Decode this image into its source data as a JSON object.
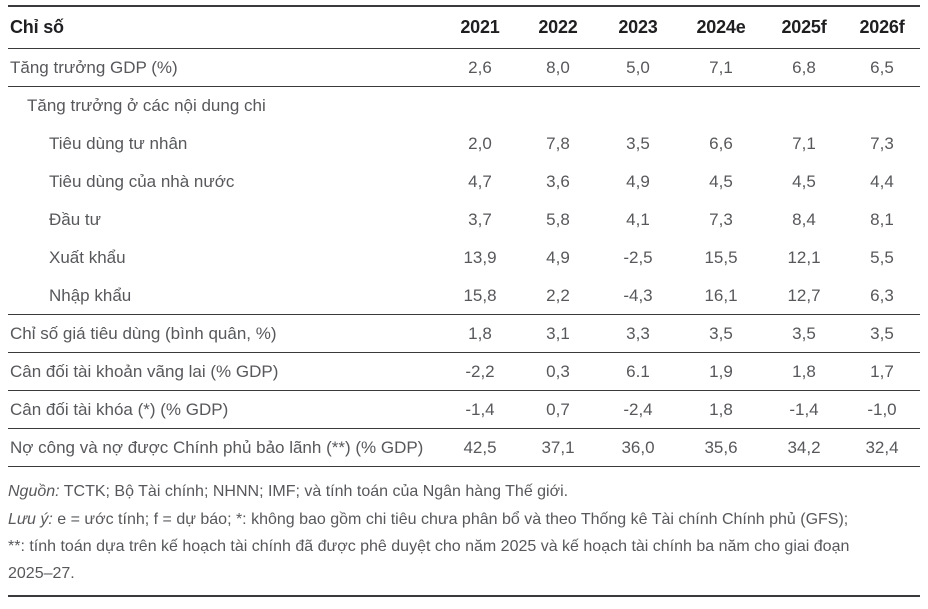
{
  "table": {
    "header": {
      "label": "Chỉ số",
      "years": [
        "2021",
        "2022",
        "2023",
        "2024e",
        "2025f",
        "2026f"
      ]
    },
    "rows": [
      {
        "label": "Tăng trưởng GDP (%)",
        "indent": 0,
        "values": [
          "2,6",
          "8,0",
          "5,0",
          "7,1",
          "6,8",
          "6,5"
        ],
        "rule_below": true
      },
      {
        "label": "Tăng trưởng ở các nội dung chi",
        "indent": 1,
        "values": [
          "",
          "",
          "",
          "",
          "",
          ""
        ],
        "rule_below": false
      },
      {
        "label": "Tiêu dùng tư nhân",
        "indent": 2,
        "values": [
          "2,0",
          "7,8",
          "3,5",
          "6,6",
          "7,1",
          "7,3"
        ],
        "rule_below": false
      },
      {
        "label": "Tiêu dùng của nhà nước",
        "indent": 2,
        "values": [
          "4,7",
          "3,6",
          "4,9",
          "4,5",
          "4,5",
          "4,4"
        ],
        "rule_below": false
      },
      {
        "label": "Đầu tư",
        "indent": 2,
        "values": [
          "3,7",
          "5,8",
          "4,1",
          "7,3",
          "8,4",
          "8,1"
        ],
        "rule_below": false
      },
      {
        "label": "Xuất khẩu",
        "indent": 2,
        "values": [
          "13,9",
          "4,9",
          "-2,5",
          "15,5",
          "12,1",
          "5,5"
        ],
        "rule_below": false
      },
      {
        "label": "Nhập khẩu",
        "indent": 2,
        "values": [
          "15,8",
          "2,2",
          "-4,3",
          "16,1",
          "12,7",
          "6,3"
        ],
        "rule_below": true
      },
      {
        "label": "Chỉ số giá tiêu dùng (bình quân, %)",
        "indent": 0,
        "values": [
          "1,8",
          "3,1",
          "3,3",
          "3,5",
          "3,5",
          "3,5"
        ],
        "rule_below": true
      },
      {
        "label": "Cân đối tài khoản vãng lai (% GDP)",
        "indent": 0,
        "values": [
          "-2,2",
          "0,3",
          "6.1",
          "1,9",
          "1,8",
          "1,7"
        ],
        "rule_below": true
      },
      {
        "label": "Cân đối tài khóa (*) (% GDP)",
        "indent": 0,
        "values": [
          "-1,4",
          "0,7",
          "-2,4",
          "1,8",
          "-1,4",
          "-1,0"
        ],
        "rule_below": true
      },
      {
        "label": "Nợ công và nợ được Chính phủ bảo lãnh (**) (% GDP)",
        "indent": 0,
        "values": [
          "42,5",
          "37,1",
          "36,0",
          "35,6",
          "34,2",
          "32,4"
        ],
        "rule_below": true
      }
    ]
  },
  "footer": {
    "source_prefix": "Nguồn:",
    "source_text": " TCTK; Bộ Tài chính; NHNN; IMF; và tính toán của Ngân hàng Thế giới.",
    "note_prefix": "Lưu ý:",
    "note_text": " e = ước tính; f = dự báo; *: không bao gồm chi tiêu chưa phân bổ và theo Thống kê Tài chính Chính phủ (GFS); **: tính toán dựa trên kế hoạch tài chính đã được phê duyệt cho năm 2025 và kế hoạch tài chính ba năm cho giai đoạn 2025–27."
  },
  "colors": {
    "background": "#ffffff",
    "text_body": "#57585b",
    "text_header": "#1f1f21",
    "rule": "#3a3a3c"
  }
}
